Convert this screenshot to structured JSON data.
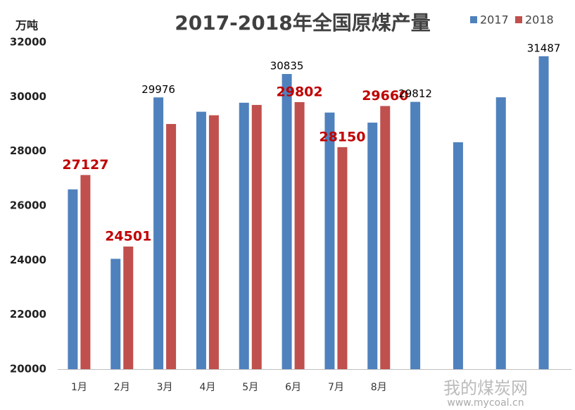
{
  "chart_data": {
    "type": "bar",
    "title": "2017-2018年全国原煤产量",
    "y_label": "万吨",
    "categories": [
      "1月",
      "2月",
      "3月",
      "4月",
      "5月",
      "6月",
      "7月",
      "8月",
      null,
      null,
      null,
      null
    ],
    "series": [
      {
        "name": "2017",
        "color": "#4f81bd",
        "values": [
          26600,
          24050,
          29976,
          29450,
          29780,
          30835,
          29420,
          29050,
          29812,
          28330,
          29980,
          31487
        ],
        "value_labels": [
          null,
          null,
          "29976",
          null,
          null,
          "30835",
          null,
          null,
          "29812",
          null,
          null,
          "31487"
        ]
      },
      {
        "name": "2018",
        "color": "#c0504d",
        "values": [
          27127,
          24501,
          29000,
          29320,
          29700,
          29802,
          28150,
          29660,
          null,
          null,
          null,
          null
        ],
        "value_labels": [
          "27127",
          "24501",
          null,
          null,
          null,
          "29802",
          "28150",
          "29660",
          null,
          null,
          null,
          null
        ]
      }
    ],
    "ylim": [
      20000,
      32000
    ],
    "yticks": [
      20000,
      22000,
      24000,
      26000,
      28000,
      30000,
      32000
    ],
    "grid": false,
    "legend": "top-right",
    "watermark": {
      "name": "我的煤炭网",
      "url": "www.mycoal.cn"
    }
  }
}
